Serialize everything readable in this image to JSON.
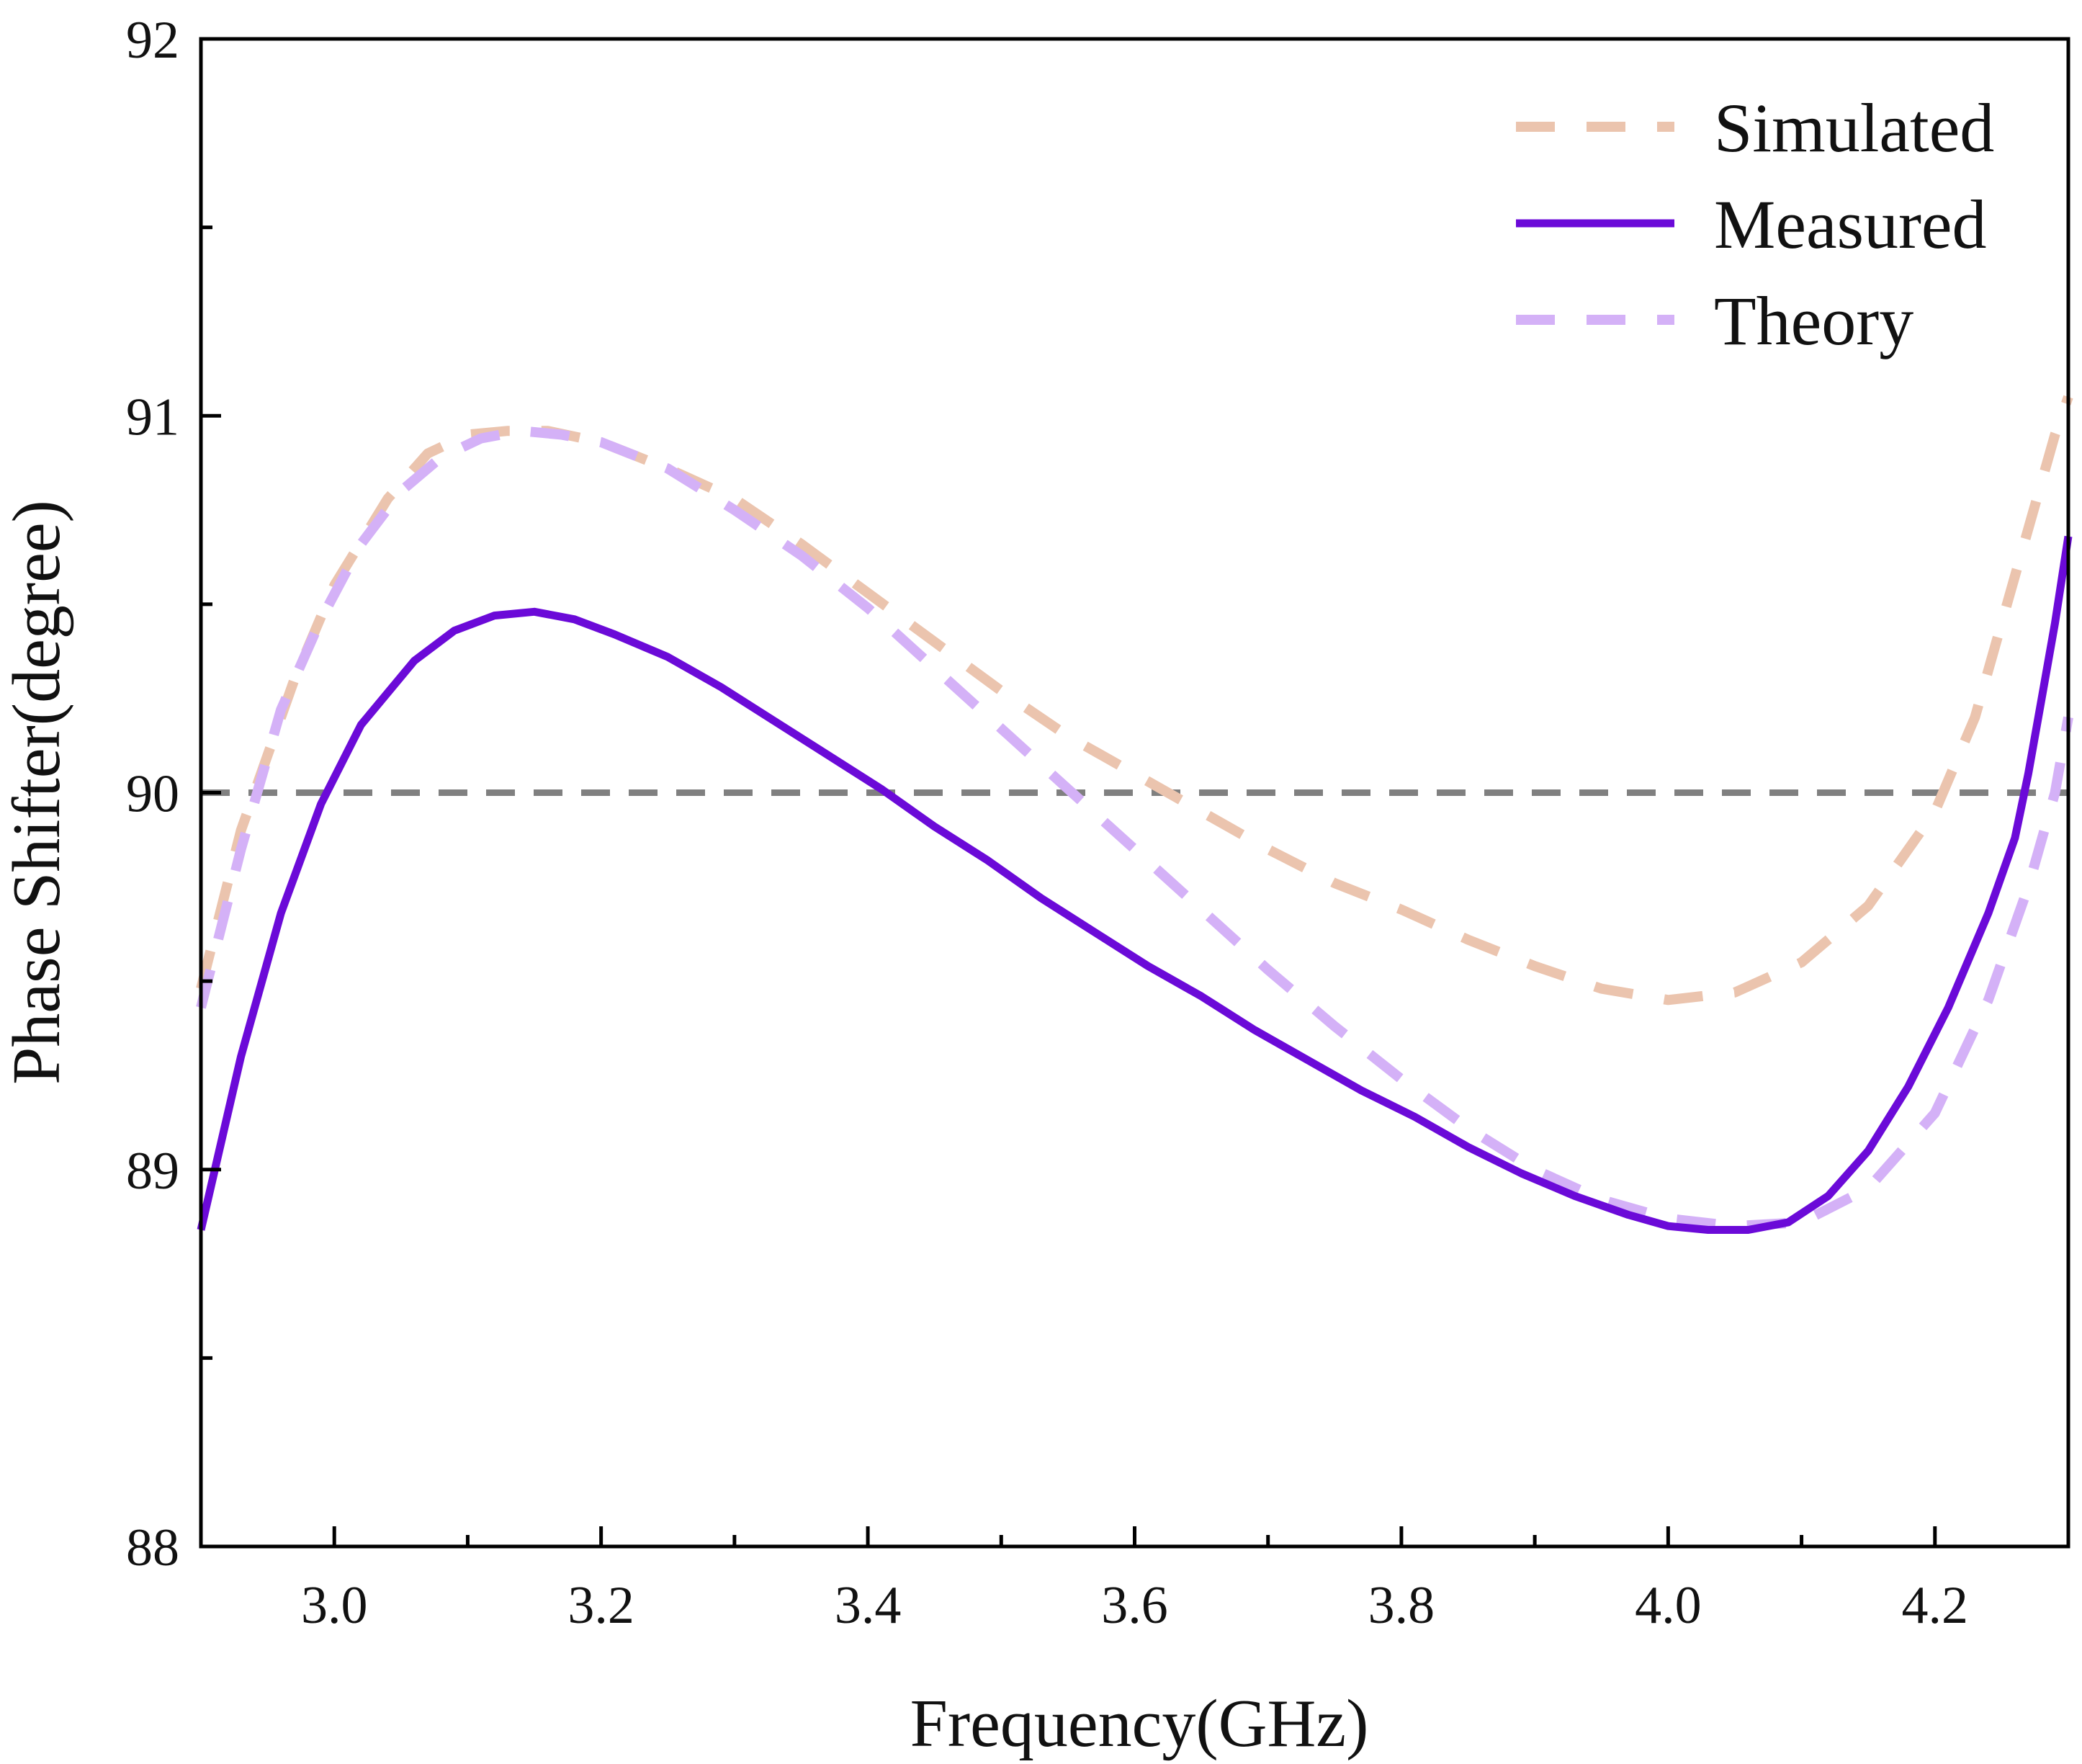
{
  "chart_data": {
    "type": "line",
    "title": "",
    "xlabel": "Frequency(GHz)",
    "ylabel": "Phase Shifter(degree)",
    "xlim": [
      2.9,
      4.3
    ],
    "ylim": [
      88,
      92
    ],
    "xticks": [
      3.0,
      3.2,
      3.4,
      3.6,
      3.8,
      4.0,
      4.2
    ],
    "xtick_labels": [
      "3.0",
      "3.2",
      "3.4",
      "3.6",
      "3.8",
      "4.0",
      "4.2"
    ],
    "xminor": [
      3.1,
      3.3,
      3.5,
      3.7,
      3.9,
      4.1
    ],
    "yticks": [
      88,
      89,
      90,
      91,
      92
    ],
    "ytick_labels": [
      "88",
      "89",
      "90",
      "91",
      "92"
    ],
    "yminor": [
      88.5,
      89.5,
      90.5,
      91.5
    ],
    "grid": false,
    "legend_position": "top-right",
    "reference_line": {
      "y": 90,
      "color": "#808080",
      "style": "dashed"
    },
    "series": [
      {
        "name": "Simulated",
        "color": "#EBC4AE",
        "style": "dashed",
        "x": [
          2.9,
          2.93,
          2.97,
          3.0,
          3.04,
          3.07,
          3.1,
          3.13,
          3.16,
          3.2,
          3.25,
          3.3,
          3.35,
          3.4,
          3.45,
          3.5,
          3.55,
          3.6,
          3.65,
          3.7,
          3.75,
          3.8,
          3.85,
          3.9,
          3.95,
          4.0,
          4.05,
          4.1,
          4.15,
          4.2,
          4.23,
          4.25,
          4.27,
          4.29,
          4.3
        ],
        "values": [
          89.48,
          89.9,
          90.3,
          90.55,
          90.78,
          90.9,
          90.95,
          90.96,
          90.96,
          90.93,
          90.86,
          90.78,
          90.66,
          90.53,
          90.4,
          90.27,
          90.15,
          90.05,
          89.95,
          89.85,
          89.76,
          89.69,
          89.61,
          89.54,
          89.48,
          89.45,
          89.47,
          89.55,
          89.7,
          89.95,
          90.2,
          90.45,
          90.7,
          90.95,
          91.05
        ]
      },
      {
        "name": "Measured",
        "color": "#6B0AD8",
        "style": "solid",
        "x": [
          2.9,
          2.93,
          2.96,
          2.99,
          3.02,
          3.06,
          3.09,
          3.12,
          3.15,
          3.18,
          3.21,
          3.25,
          3.29,
          3.33,
          3.37,
          3.41,
          3.45,
          3.49,
          3.53,
          3.57,
          3.61,
          3.65,
          3.69,
          3.73,
          3.77,
          3.81,
          3.85,
          3.89,
          3.93,
          3.97,
          4.0,
          4.03,
          4.06,
          4.09,
          4.12,
          4.15,
          4.18,
          4.21,
          4.24,
          4.26,
          4.27,
          4.28,
          4.29,
          4.3
        ],
        "values": [
          88.84,
          89.3,
          89.68,
          89.97,
          90.18,
          90.35,
          90.43,
          90.47,
          90.48,
          90.46,
          90.42,
          90.36,
          90.28,
          90.19,
          90.1,
          90.01,
          89.91,
          89.82,
          89.72,
          89.63,
          89.54,
          89.46,
          89.37,
          89.29,
          89.21,
          89.14,
          89.06,
          88.99,
          88.93,
          88.88,
          88.85,
          88.84,
          88.84,
          88.86,
          88.93,
          89.05,
          89.22,
          89.43,
          89.68,
          89.88,
          90.05,
          90.25,
          90.45,
          90.68
        ]
      },
      {
        "name": "Theory",
        "color": "#D4B1F7",
        "style": "dashed",
        "x": [
          2.9,
          2.93,
          2.96,
          2.99,
          3.02,
          3.05,
          3.08,
          3.11,
          3.14,
          3.17,
          3.2,
          3.25,
          3.3,
          3.35,
          3.4,
          3.45,
          3.5,
          3.55,
          3.6,
          3.65,
          3.7,
          3.75,
          3.8,
          3.85,
          3.9,
          3.95,
          4.0,
          4.05,
          4.1,
          4.15,
          4.2,
          4.24,
          4.27,
          4.29,
          4.3
        ],
        "values": [
          89.43,
          89.85,
          90.22,
          90.46,
          90.66,
          90.8,
          90.89,
          90.94,
          90.96,
          90.95,
          90.93,
          90.86,
          90.75,
          90.63,
          90.49,
          90.33,
          90.17,
          90.01,
          89.85,
          89.69,
          89.53,
          89.38,
          89.24,
          89.11,
          89.0,
          88.92,
          88.87,
          88.85,
          88.86,
          88.95,
          89.15,
          89.45,
          89.75,
          90.0,
          90.2
        ]
      }
    ]
  }
}
